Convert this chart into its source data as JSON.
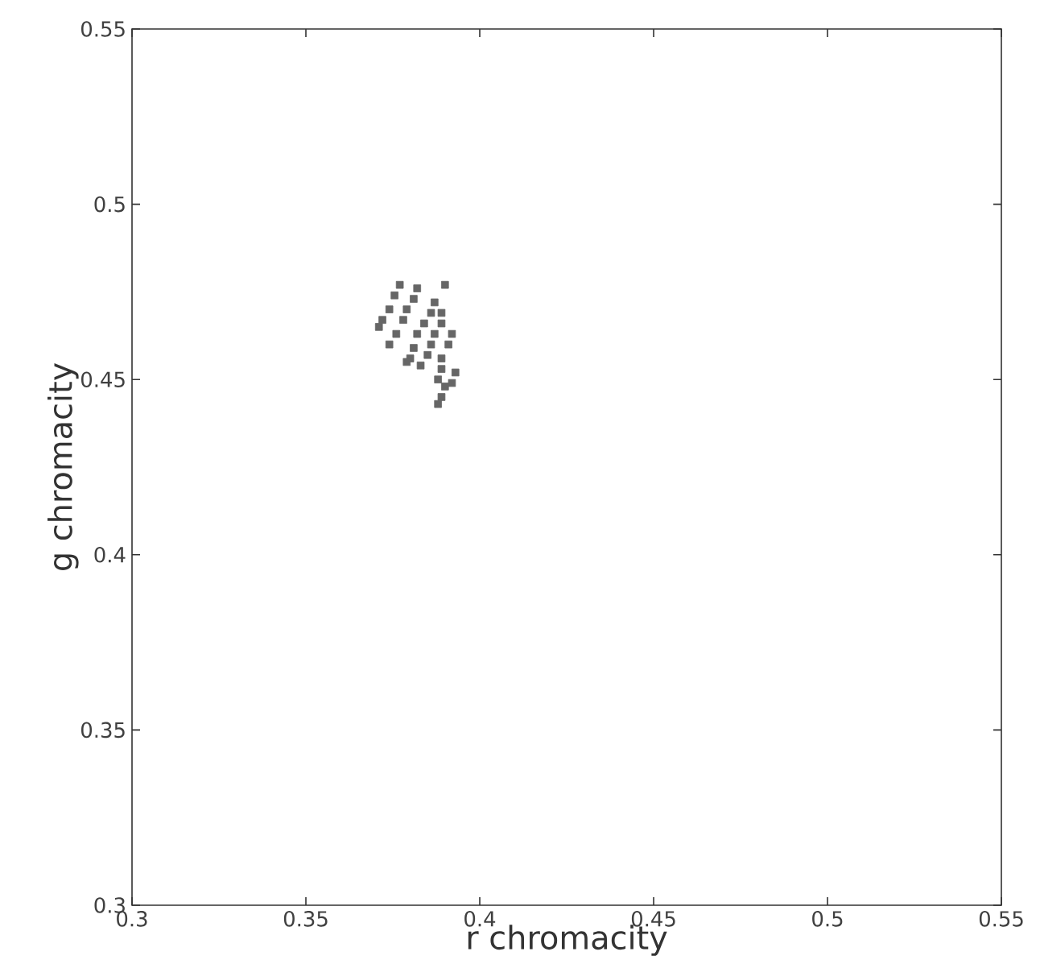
{
  "chart_data": {
    "type": "scatter",
    "xlabel": "r chromacity",
    "ylabel": "g chromacity",
    "xlim": [
      0.3,
      0.55
    ],
    "ylim": [
      0.3,
      0.55
    ],
    "xticks": [
      0.3,
      0.35,
      0.4,
      0.45,
      0.5,
      0.55
    ],
    "yticks": [
      0.3,
      0.35,
      0.4,
      0.45,
      0.5,
      0.55
    ],
    "grid": false,
    "marker": "square",
    "series": [
      {
        "color": "#666666",
        "x": [
          0.377,
          0.3755,
          0.374,
          0.372,
          0.371,
          0.374,
          0.382,
          0.381,
          0.379,
          0.378,
          0.376,
          0.387,
          0.386,
          0.384,
          0.382,
          0.381,
          0.38,
          0.379,
          0.39,
          0.389,
          0.389,
          0.387,
          0.386,
          0.385,
          0.383,
          0.392,
          0.391,
          0.389,
          0.389,
          0.388,
          0.393,
          0.392,
          0.39,
          0.389,
          0.388
        ],
        "values": [
          0.477,
          0.474,
          0.47,
          0.467,
          0.465,
          0.46,
          0.476,
          0.473,
          0.47,
          0.467,
          0.463,
          0.472,
          0.469,
          0.466,
          0.463,
          0.459,
          0.456,
          0.455,
          0.477,
          0.469,
          0.466,
          0.463,
          0.46,
          0.457,
          0.454,
          0.463,
          0.46,
          0.456,
          0.453,
          0.45,
          0.452,
          0.449,
          0.448,
          0.445,
          0.443
        ]
      }
    ]
  }
}
